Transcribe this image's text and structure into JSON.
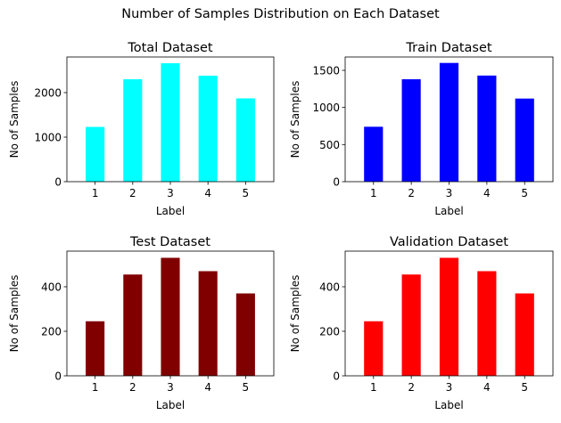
{
  "suptitle": "Number of Samples Distribution on Each Dataset",
  "chart_data": [
    {
      "type": "bar",
      "title": "Total Dataset",
      "xlabel": "Label",
      "ylabel": "No of Samples",
      "categories": [
        "1",
        "2",
        "3",
        "4",
        "5"
      ],
      "values": [
        1230,
        2300,
        2660,
        2380,
        1870
      ],
      "ylim": [
        0,
        2800
      ],
      "yticks": [
        0,
        1000,
        2000
      ],
      "color": "#00ffff"
    },
    {
      "type": "bar",
      "title": "Train Dataset",
      "xlabel": "Label",
      "ylabel": "No of Samples",
      "categories": [
        "1",
        "2",
        "3",
        "4",
        "5"
      ],
      "values": [
        740,
        1380,
        1600,
        1430,
        1120
      ],
      "ylim": [
        0,
        1680
      ],
      "yticks": [
        0,
        500,
        1000,
        1500
      ],
      "color": "#0000ff"
    },
    {
      "type": "bar",
      "title": "Test Dataset",
      "xlabel": "Label",
      "ylabel": "No of Samples",
      "categories": [
        "1",
        "2",
        "3",
        "4",
        "5"
      ],
      "values": [
        245,
        455,
        530,
        470,
        370
      ],
      "ylim": [
        0,
        560
      ],
      "yticks": [
        0,
        200,
        400
      ],
      "color": "#800000"
    },
    {
      "type": "bar",
      "title": "Validation Dataset",
      "xlabel": "Label",
      "ylabel": "No of Samples",
      "categories": [
        "1",
        "2",
        "3",
        "4",
        "5"
      ],
      "values": [
        245,
        455,
        530,
        470,
        370
      ],
      "ylim": [
        0,
        560
      ],
      "yticks": [
        0,
        200,
        400
      ],
      "color": "#ff0000"
    }
  ]
}
